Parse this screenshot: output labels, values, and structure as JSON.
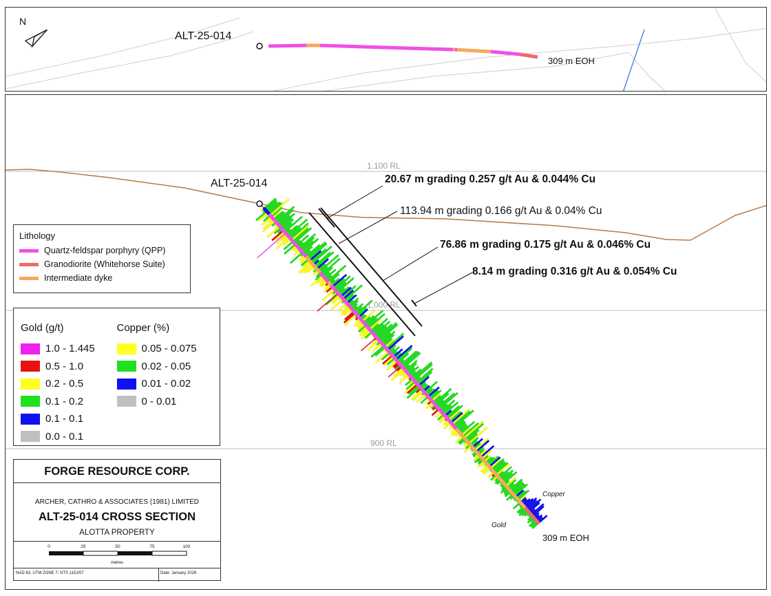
{
  "plan_view": {
    "north_label": "N",
    "hole_label": "ALT-25-014",
    "eoh_label": "309 m EOH"
  },
  "section_view": {
    "hole_label": "ALT-25-014",
    "eoh_label": "309 m EOH",
    "rl_labels": [
      "1,100 RL",
      "1,000 RL",
      "900 RL"
    ],
    "histogram_labels": {
      "copper": "Copper",
      "gold": "Gold"
    },
    "intercepts": [
      {
        "text": "20.67 m grading 0.257 g/t Au & 0.044% Cu",
        "bold": true
      },
      {
        "text": "113.94 m grading 0.166 g/t Au & 0.04% Cu",
        "bold": false
      },
      {
        "text": "76.86 m grading 0.175 g/t Au & 0.046% Cu",
        "bold": true
      },
      {
        "text": "8.14 m grading 0.316 g/t Au & 0.054% Cu",
        "bold": true
      }
    ]
  },
  "lithology_legend": {
    "title": "Lithology",
    "items": [
      {
        "label": "Quartz-feldspar porphyry (QPP)",
        "color": "#f050e6"
      },
      {
        "label": "Granodiorite (Whitehorse Suite)",
        "color": "#ee6a6a"
      },
      {
        "label": "Intermediate dyke",
        "color": "#f5a95c"
      }
    ]
  },
  "grade_legend": {
    "gold_title": "Gold (g/t)",
    "gold_items": [
      {
        "label": "1.0 - 1.445",
        "color": "#f020f0"
      },
      {
        "label": "0.5 - 1.0",
        "color": "#e81010"
      },
      {
        "label": "0.2 - 0.5",
        "color": "#ffff20"
      },
      {
        "label": "0.1 - 0.2",
        "color": "#20e020"
      },
      {
        "label": "0.1 - 0.1",
        "color": "#1010f0"
      },
      {
        "label": "0.0 - 0.1",
        "color": "#c0c0c0"
      }
    ],
    "copper_title": "Copper (%)",
    "copper_items": [
      {
        "label": "0.05 - 0.075",
        "color": "#ffff20"
      },
      {
        "label": "0.02 - 0.05",
        "color": "#20e020"
      },
      {
        "label": "0.01 - 0.02",
        "color": "#1010f0"
      },
      {
        "label": "0 - 0.01",
        "color": "#c0c0c0"
      }
    ]
  },
  "title_block": {
    "company": "FORGE RESOURCE CORP.",
    "consultant": "ARCHER, CATHRO & ASSOCIATES (1981) LIMITED",
    "section_title": "ALT-25-014 CROSS SECTION",
    "property": "ALOTTA PROPERTY",
    "scale_ticks": [
      "0",
      "25",
      "50",
      "75",
      "100"
    ],
    "scale_units": "metres",
    "datum": "NAD 83, UTM ZONE 7; NTS 115J/07",
    "date": "Date: January 2026"
  },
  "colors": {
    "topography": "#b87a45",
    "qpp": "#f050e6",
    "granodiorite": "#ee6a6a",
    "dyke": "#f5a95c",
    "gold_high": "#f020f0",
    "gold_red": "#e81010",
    "yellow": "#ffff20",
    "green": "#20e020",
    "blue": "#1010f0",
    "grey": "#c0c0c0",
    "fault_line": "#2e6fd6"
  }
}
